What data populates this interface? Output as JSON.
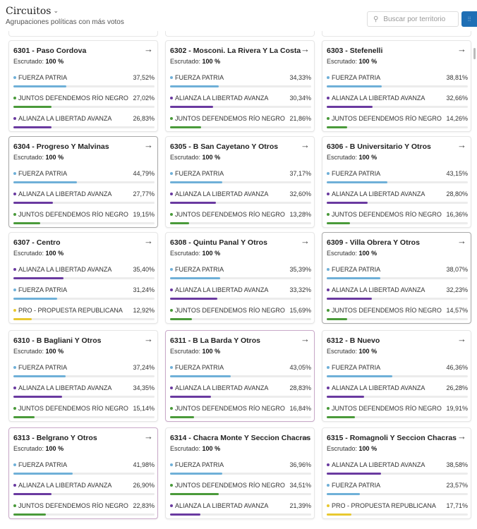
{
  "header": {
    "title": "Circuitos",
    "subtitle": "Agrupaciones políticas con más votos",
    "search_placeholder": "Buscar por territorio",
    "scrutiny_label": "Escrutado:"
  },
  "colors": {
    "FUERZA PATRIA": "#6fb0d8",
    "ALIANZA LA LIBERTAD AVANZA": "#6a3aa0",
    "JUNTOS DEFENDEMOS RÍO NEGRO": "#4a9a3a",
    "PRO - PROPUESTA REPUBLICANA": "#e8c830",
    "accent": "#1f6fb5"
  },
  "cards": [
    {
      "name": "6301 - Paso Cordova",
      "scrutiny": "100 %",
      "parties": [
        {
          "name": "FUERZA PATRIA",
          "pct": "37,52%",
          "value": 37.52
        },
        {
          "name": "JUNTOS DEFENDEMOS RÍO NEGRO",
          "pct": "27,02%",
          "value": 27.02
        },
        {
          "name": "ALIANZA LA LIBERTAD AVANZA",
          "pct": "26,83%",
          "value": 26.83
        }
      ]
    },
    {
      "name": "6302 - Mosconi. La Rivera Y La Costa",
      "scrutiny": "100 %",
      "parties": [
        {
          "name": "FUERZA PATRIA",
          "pct": "34,33%",
          "value": 34.33
        },
        {
          "name": "ALIANZA LA LIBERTAD AVANZA",
          "pct": "30,34%",
          "value": 30.34
        },
        {
          "name": "JUNTOS DEFENDEMOS RÍO NEGRO",
          "pct": "21,86%",
          "value": 21.86
        }
      ]
    },
    {
      "name": "6303 - Stefenelli",
      "scrutiny": "100 %",
      "parties": [
        {
          "name": "FUERZA PATRIA",
          "pct": "38,81%",
          "value": 38.81
        },
        {
          "name": "ALIANZA LA LIBERTAD AVANZA",
          "pct": "32,66%",
          "value": 32.66
        },
        {
          "name": "JUNTOS DEFENDEMOS RÍO NEGRO",
          "pct": "14,26%",
          "value": 14.26
        }
      ]
    },
    {
      "name": "6304 - Progreso Y Malvinas",
      "scrutiny": "100 %",
      "hl": "hl",
      "parties": [
        {
          "name": "FUERZA PATRIA",
          "pct": "44,79%",
          "value": 44.79
        },
        {
          "name": "ALIANZA LA LIBERTAD AVANZA",
          "pct": "27,77%",
          "value": 27.77
        },
        {
          "name": "JUNTOS DEFENDEMOS RÍO NEGRO",
          "pct": "19,15%",
          "value": 19.15
        }
      ]
    },
    {
      "name": "6305 - B San Cayetano Y Otros",
      "scrutiny": "100 %",
      "parties": [
        {
          "name": "FUERZA PATRIA",
          "pct": "37,17%",
          "value": 37.17
        },
        {
          "name": "ALIANZA LA LIBERTAD AVANZA",
          "pct": "32,60%",
          "value": 32.6
        },
        {
          "name": "JUNTOS DEFENDEMOS RÍO NEGRO",
          "pct": "13,28%",
          "value": 13.28
        }
      ]
    },
    {
      "name": "6306 - B Universitario Y Otros",
      "scrutiny": "100 %",
      "parties": [
        {
          "name": "FUERZA PATRIA",
          "pct": "43,15%",
          "value": 43.15
        },
        {
          "name": "ALIANZA LA LIBERTAD AVANZA",
          "pct": "28,80%",
          "value": 28.8
        },
        {
          "name": "JUNTOS DEFENDEMOS RÍO NEGRO",
          "pct": "16,36%",
          "value": 16.36
        }
      ]
    },
    {
      "name": "6307 - Centro",
      "scrutiny": "100 %",
      "parties": [
        {
          "name": "ALIANZA LA LIBERTAD AVANZA",
          "pct": "35,40%",
          "value": 35.4
        },
        {
          "name": "FUERZA PATRIA",
          "pct": "31,24%",
          "value": 31.24
        },
        {
          "name": "PRO - PROPUESTA REPUBLICANA",
          "pct": "12,92%",
          "value": 12.92
        }
      ]
    },
    {
      "name": "6308 - Quintu Panal Y Otros",
      "scrutiny": "100 %",
      "parties": [
        {
          "name": "FUERZA PATRIA",
          "pct": "35,39%",
          "value": 35.39
        },
        {
          "name": "ALIANZA LA LIBERTAD AVANZA",
          "pct": "33,32%",
          "value": 33.32
        },
        {
          "name": "JUNTOS DEFENDEMOS RÍO NEGRO",
          "pct": "15,69%",
          "value": 15.69
        }
      ]
    },
    {
      "name": "6309 - Villa Obrera Y Otros",
      "scrutiny": "100 %",
      "hl": "hl",
      "parties": [
        {
          "name": "FUERZA PATRIA",
          "pct": "38,07%",
          "value": 38.07
        },
        {
          "name": "ALIANZA LA LIBERTAD AVANZA",
          "pct": "32,23%",
          "value": 32.23
        },
        {
          "name": "JUNTOS DEFENDEMOS RÍO NEGRO",
          "pct": "14,57%",
          "value": 14.57
        }
      ]
    },
    {
      "name": "6310 - B Bagliani Y Otros",
      "scrutiny": "100 %",
      "parties": [
        {
          "name": "FUERZA PATRIA",
          "pct": "37,24%",
          "value": 37.24
        },
        {
          "name": "ALIANZA LA LIBERTAD AVANZA",
          "pct": "34,35%",
          "value": 34.35
        },
        {
          "name": "JUNTOS DEFENDEMOS RÍO NEGRO",
          "pct": "15,14%",
          "value": 15.14
        }
      ]
    },
    {
      "name": "6311 - B La Barda Y Otros",
      "scrutiny": "100 %",
      "hl": "hlp",
      "parties": [
        {
          "name": "FUERZA PATRIA",
          "pct": "43,05%",
          "value": 43.05
        },
        {
          "name": "ALIANZA LA LIBERTAD AVANZA",
          "pct": "28,83%",
          "value": 28.83
        },
        {
          "name": "JUNTOS DEFENDEMOS RÍO NEGRO",
          "pct": "16,84%",
          "value": 16.84
        }
      ]
    },
    {
      "name": "6312 - B Nuevo",
      "scrutiny": "100 %",
      "parties": [
        {
          "name": "FUERZA PATRIA",
          "pct": "46,36%",
          "value": 46.36
        },
        {
          "name": "ALIANZA LA LIBERTAD AVANZA",
          "pct": "26,28%",
          "value": 26.28
        },
        {
          "name": "JUNTOS DEFENDEMOS RÍO NEGRO",
          "pct": "19,91%",
          "value": 19.91
        }
      ]
    },
    {
      "name": "6313 - Belgrano Y Otros",
      "scrutiny": "100 %",
      "hl": "hlp",
      "parties": [
        {
          "name": "FUERZA PATRIA",
          "pct": "41,98%",
          "value": 41.98
        },
        {
          "name": "ALIANZA LA LIBERTAD AVANZA",
          "pct": "26,90%",
          "value": 26.9
        },
        {
          "name": "JUNTOS DEFENDEMOS RÍO NEGRO",
          "pct": "22,83%",
          "value": 22.83
        }
      ]
    },
    {
      "name": "6314 - Chacra Monte Y Seccion Chacras",
      "scrutiny": "100 %",
      "parties": [
        {
          "name": "FUERZA PATRIA",
          "pct": "36,96%",
          "value": 36.96
        },
        {
          "name": "JUNTOS DEFENDEMOS RÍO NEGRO",
          "pct": "34,51%",
          "value": 34.51
        },
        {
          "name": "ALIANZA LA LIBERTAD AVANZA",
          "pct": "21,39%",
          "value": 21.39
        }
      ]
    },
    {
      "name": "6315 - Romagnoli Y Seccion Chacras",
      "scrutiny": "100 %",
      "parties": [
        {
          "name": "ALIANZA LA LIBERTAD AVANZA",
          "pct": "38,58%",
          "value": 38.58
        },
        {
          "name": "FUERZA PATRIA",
          "pct": "23,57%",
          "value": 23.57
        },
        {
          "name": "PRO - PROPUESTA REPUBLICANA",
          "pct": "17,71%",
          "value": 17.71
        }
      ]
    }
  ]
}
